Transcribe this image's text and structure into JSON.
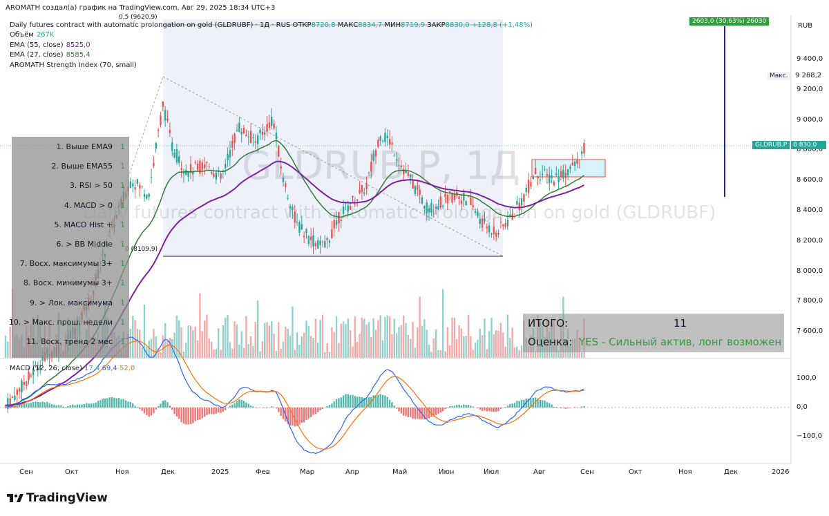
{
  "header": {
    "title": "AROMATH создал(а) график на TradingView.com, Авг 29, 2025 18:34 UTC+3",
    "fib_top_label": "0,5 (9620,9)",
    "fib_bottom_label": "0 (8109,9)"
  },
  "instrument": {
    "name": "Daily futures contract with automatic prolongation on gold (GLDRUBF) · 1Д · RUS",
    "watermark_symbol": "GLDRUB.P, 1Д",
    "watermark_desc": "Daily futures contract with automatic prolongation on gold (GLDRUBF)",
    "ohlc": [
      {
        "label": "ОТКР",
        "value": "8720,8"
      },
      {
        "label": "МАКС",
        "value": "8834,7"
      },
      {
        "label": "МИН",
        "value": "8719,9"
      },
      {
        "label": "ЗАКР",
        "value": "8830,0"
      }
    ],
    "change": "+128,8 (+1,48%)"
  },
  "indicators": [
    {
      "name": "Объём",
      "value": "267K",
      "color": "#26a69a"
    },
    {
      "name": "EMA (55, close)",
      "value": "8525,0",
      "color": "#7b1fa2"
    },
    {
      "name": "EMA (27, close)",
      "value": "8585,4",
      "color": "#2e7d32"
    },
    {
      "name": "AROMATH Strength Index (70, small)",
      "value": "",
      "color": "#131722"
    }
  ],
  "price_axis": {
    "currency": "RUB",
    "ticks": [
      "9 400,0",
      "9 200,0",
      "9 000,0",
      "8 800,0",
      "8 600,0",
      "8 400,0",
      "8 200,0",
      "8 000,0",
      "7 800,0",
      "7 600,0"
    ],
    "max_label": "Макс.",
    "max_value": "9 288,2",
    "symbol_tag": "GLDRUB.P",
    "symbol_price": "8 830,0"
  },
  "measure_label": "2603,0 (30,63%) 26030",
  "macd": {
    "label": "MACD (12, 26, close)",
    "values": [
      {
        "value": "17,4",
        "color": "#26a69a"
      },
      {
        "value": "69,4",
        "color": "#2962ff"
      },
      {
        "value": "52,0",
        "color": "#ff6d00"
      }
    ],
    "ticks": [
      "100,0",
      "0,0",
      "−100,0"
    ]
  },
  "time_axis": [
    "Сен",
    "Окт",
    "Ноя",
    "Дек",
    "2025",
    "Фев",
    "Мар",
    "Апр",
    "Май",
    "Июн",
    "Июл",
    "Авг",
    "Сен",
    "Окт",
    "Ноя",
    "Дек",
    "2026"
  ],
  "checklist": [
    {
      "label": "1. Выше EMA9",
      "value": "1"
    },
    {
      "label": "2. Выше EMA55",
      "value": "1"
    },
    {
      "label": "3. RSI > 50",
      "value": "1"
    },
    {
      "label": "4. MACD > 0",
      "value": "1"
    },
    {
      "label": "5. MACD Hist +",
      "value": "1"
    },
    {
      "label": "6. > BB Middle",
      "value": "1"
    },
    {
      "label": "7. Восх. максимумы 3+",
      "value": "1"
    },
    {
      "label": "8. Восх. минимумы 3+",
      "value": "1"
    },
    {
      "label": "9. > Лок. максимума",
      "value": "1"
    },
    {
      "label": "10. > Макс. прош. недели",
      "value": "1"
    },
    {
      "label": "11. Восх. тренд 2 мес",
      "value": "1"
    }
  ],
  "summary": {
    "total_label": "ИТОГО:",
    "total_value": "11",
    "rating_label": "Оценка:",
    "rating_value": "YES - Сильный актив, лонг возможен"
  },
  "branding": {
    "logo_text": "TradingView"
  }
}
